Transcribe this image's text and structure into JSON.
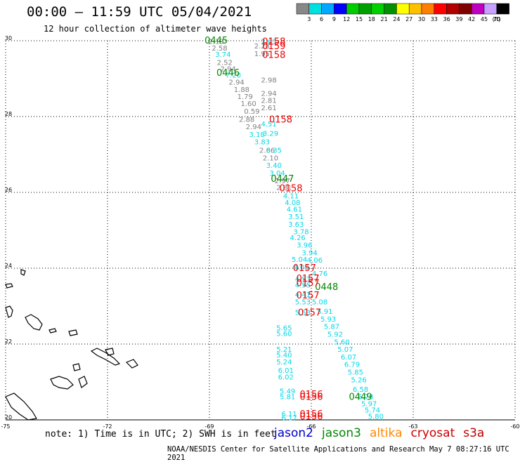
{
  "title": "00:00 – 11:59 UTC 05/04/2021",
  "subtitle": "12 hour collection of altimeter wave heights",
  "note": "note: 1) Time is in UTC; 2) SWH is in feet",
  "credit": "NOAA/NESDIS Center for Satellite Applications and Research    May  7 08:27:16 UTC 2021",
  "missions": [
    {
      "name": "jason2",
      "color": "#0000cc"
    },
    {
      "name": "jason3",
      "color": "#008800"
    },
    {
      "name": "altika",
      "color": "#ff8800"
    },
    {
      "name": "cryosat",
      "color": "#cc0000"
    },
    {
      "name": "s3a",
      "color": "#bb0000"
    }
  ],
  "colorbar": {
    "unit": "(ft)",
    "ticks": [
      "3",
      "6",
      "9",
      "12",
      "15",
      "18",
      "21",
      "24",
      "27",
      "30",
      "33",
      "36",
      "39",
      "42",
      "45",
      "70"
    ],
    "colors": [
      "#888888",
      "#00e0e0",
      "#00a8ff",
      "#0000ff",
      "#00cc00",
      "#00a000",
      "#00d000",
      "#009000",
      "#ffff00",
      "#ffc000",
      "#ff8000",
      "#ff0000",
      "#b00000",
      "#800000",
      "#c000c0",
      "#c8a0ff",
      "#000000"
    ]
  },
  "chart_data": {
    "type": "scatter",
    "title": "00:00 – 11:59 UTC 05/04/2021",
    "subtitle": "12 hour collection of altimeter wave heights",
    "xlabel": "",
    "ylabel": "",
    "xlim": [
      -75,
      -60
    ],
    "ylim": [
      20,
      30
    ],
    "x_ticks": [
      "-75",
      "-72",
      "-69",
      "-66",
      "-63",
      "-60"
    ],
    "y_ticks": [
      "20",
      "22",
      "24",
      "26",
      "28",
      "30"
    ],
    "grid": true,
    "series": [
      {
        "name": "SWH",
        "points": [
          {
            "lon": -68.8,
            "lat": 29.97,
            "v": "2.19",
            "c": "#808080"
          },
          {
            "lon": -68.7,
            "lat": 29.8,
            "v": "2.58",
            "c": "#808080"
          },
          {
            "lon": -68.6,
            "lat": 29.63,
            "v": "3.74",
            "c": "#00d8e8"
          },
          {
            "lon": -68.55,
            "lat": 29.42,
            "v": "2.52",
            "c": "#808080"
          },
          {
            "lon": -68.45,
            "lat": 29.25,
            "v": "2.94",
            "c": "#808080"
          },
          {
            "lon": -68.3,
            "lat": 29.08,
            "v": "7.20",
            "c": "#00d8e8"
          },
          {
            "lon": -68.2,
            "lat": 28.9,
            "v": "2.94",
            "c": "#808080"
          },
          {
            "lon": -68.05,
            "lat": 28.7,
            "v": "1.88",
            "c": "#808080"
          },
          {
            "lon": -67.95,
            "lat": 28.52,
            "v": "1.79",
            "c": "#808080"
          },
          {
            "lon": -67.85,
            "lat": 28.33,
            "v": "1.60",
            "c": "#808080"
          },
          {
            "lon": -67.75,
            "lat": 28.13,
            "v": "0.59",
            "c": "#808080"
          },
          {
            "lon": -67.9,
            "lat": 27.92,
            "v": "2.88",
            "c": "#808080"
          },
          {
            "lon": -67.7,
            "lat": 27.72,
            "v": "2.94",
            "c": "#808080"
          },
          {
            "lon": -67.6,
            "lat": 27.52,
            "v": "3.18",
            "c": "#00d8e8"
          },
          {
            "lon": -67.45,
            "lat": 27.32,
            "v": "3.83",
            "c": "#00d8e8"
          },
          {
            "lon": -67.3,
            "lat": 27.1,
            "v": "2.66",
            "c": "#808080"
          },
          {
            "lon": -67.2,
            "lat": 26.9,
            "v": "2.10",
            "c": "#808080"
          },
          {
            "lon": -67.1,
            "lat": 26.7,
            "v": "3.40",
            "c": "#00d8e8"
          },
          {
            "lon": -67.0,
            "lat": 26.5,
            "v": "3.04",
            "c": "#00d8e8"
          },
          {
            "lon": -66.85,
            "lat": 26.3,
            "v": "2.97",
            "c": "#808080"
          },
          {
            "lon": -66.8,
            "lat": 26.12,
            "v": "2.81",
            "c": "#808080"
          },
          {
            "lon": -67.25,
            "lat": 29.97,
            "v": "2.63",
            "c": "#00d8e8"
          },
          {
            "lon": -67.45,
            "lat": 29.85,
            "v": "2.28",
            "c": "#808080"
          },
          {
            "lon": -67.45,
            "lat": 29.65,
            "v": "1.95",
            "c": "#808080"
          },
          {
            "lon": -67.25,
            "lat": 28.95,
            "v": "2.98",
            "c": "#808080"
          },
          {
            "lon": -67.25,
            "lat": 28.6,
            "v": "2.94",
            "c": "#808080"
          },
          {
            "lon": -67.25,
            "lat": 28.42,
            "v": "2.81",
            "c": "#808080"
          },
          {
            "lon": -67.25,
            "lat": 28.22,
            "v": "2.61",
            "c": "#808080"
          },
          {
            "lon": -67.25,
            "lat": 27.8,
            "v": "4.51",
            "c": "#00d8e8"
          },
          {
            "lon": -67.2,
            "lat": 27.55,
            "v": "3.29",
            "c": "#00d8e8"
          },
          {
            "lon": -67.1,
            "lat": 27.1,
            "v": "3.35",
            "c": "#00d8e8"
          },
          {
            "lon": -66.6,
            "lat": 25.9,
            "v": "4.11",
            "c": "#00d8e8"
          },
          {
            "lon": -66.55,
            "lat": 25.72,
            "v": "4.08",
            "c": "#00d8e8"
          },
          {
            "lon": -66.5,
            "lat": 25.55,
            "v": "4.61",
            "c": "#00d8e8"
          },
          {
            "lon": -66.45,
            "lat": 25.35,
            "v": "3.51",
            "c": "#00d8e8"
          },
          {
            "lon": -66.45,
            "lat": 25.15,
            "v": "3.63",
            "c": "#00d8e8"
          },
          {
            "lon": -66.3,
            "lat": 24.95,
            "v": "3.78",
            "c": "#00d8e8"
          },
          {
            "lon": -66.4,
            "lat": 24.8,
            "v": "4.26",
            "c": "#00d8e8"
          },
          {
            "lon": -66.2,
            "lat": 24.6,
            "v": "3.96",
            "c": "#00d8e8"
          },
          {
            "lon": -66.05,
            "lat": 24.4,
            "v": "3.94",
            "c": "#00d8e8"
          },
          {
            "lon": -65.9,
            "lat": 24.2,
            "v": "4.06",
            "c": "#00d8e8"
          },
          {
            "lon": -66.35,
            "lat": 24.22,
            "v": "5.04",
            "c": "#00d8e8"
          },
          {
            "lon": -66.3,
            "lat": 24.02,
            "v": "4.08",
            "c": "#00d8e8"
          },
          {
            "lon": -65.75,
            "lat": 23.85,
            "v": "4.76",
            "c": "#00d8e8"
          },
          {
            "lon": -66.25,
            "lat": 23.7,
            "v": "4.53",
            "c": "#00d8e8"
          },
          {
            "lon": -66.25,
            "lat": 23.55,
            "v": "4.55",
            "c": "#00d8e8"
          },
          {
            "lon": -66.25,
            "lat": 23.3,
            "v": "4.41",
            "c": "#00d8e8"
          },
          {
            "lon": -66.25,
            "lat": 23.1,
            "v": "5.53",
            "c": "#00d8e8"
          },
          {
            "lon": -66.25,
            "lat": 22.82,
            "v": "5.53",
            "c": "#00d8e8"
          },
          {
            "lon": -65.75,
            "lat": 23.1,
            "v": "5.08",
            "c": "#00d8e8"
          },
          {
            "lon": -65.6,
            "lat": 22.85,
            "v": "5.91",
            "c": "#00d8e8"
          },
          {
            "lon": -65.5,
            "lat": 22.65,
            "v": "5.93",
            "c": "#00d8e8"
          },
          {
            "lon": -65.4,
            "lat": 22.45,
            "v": "5.87",
            "c": "#00d8e8"
          },
          {
            "lon": -65.3,
            "lat": 22.25,
            "v": "5.92",
            "c": "#00d8e8"
          },
          {
            "lon": -65.1,
            "lat": 22.05,
            "v": "5.60",
            "c": "#00d8e8"
          },
          {
            "lon": -65.0,
            "lat": 21.85,
            "v": "5.07",
            "c": "#00d8e8"
          },
          {
            "lon": -64.9,
            "lat": 21.65,
            "v": "6.07",
            "c": "#00d8e8"
          },
          {
            "lon": -64.8,
            "lat": 21.45,
            "v": "6.79",
            "c": "#00d8e8"
          },
          {
            "lon": -64.7,
            "lat": 21.25,
            "v": "5.85",
            "c": "#00d8e8"
          },
          {
            "lon": -64.6,
            "lat": 21.05,
            "v": "5.26",
            "c": "#00d8e8"
          },
          {
            "lon": -64.55,
            "lat": 20.8,
            "v": "6.58",
            "c": "#00d8e8"
          },
          {
            "lon": -64.4,
            "lat": 20.6,
            "v": "5.78",
            "c": "#00d8e8"
          },
          {
            "lon": -64.3,
            "lat": 20.42,
            "v": "5.97",
            "c": "#00d8e8"
          },
          {
            "lon": -64.2,
            "lat": 20.25,
            "v": "5.74",
            "c": "#00d8e8"
          },
          {
            "lon": -64.1,
            "lat": 20.08,
            "v": "5.80",
            "c": "#00d8e8"
          },
          {
            "lon": -66.8,
            "lat": 22.42,
            "v": "5.65",
            "c": "#00d8e8"
          },
          {
            "lon": -66.8,
            "lat": 22.27,
            "v": "5.60",
            "c": "#00d8e8"
          },
          {
            "lon": -66.8,
            "lat": 21.85,
            "v": "5.21",
            "c": "#00d8e8"
          },
          {
            "lon": -66.8,
            "lat": 21.7,
            "v": "5.40",
            "c": "#00d8e8"
          },
          {
            "lon": -66.8,
            "lat": 21.52,
            "v": "5.24",
            "c": "#00d8e8"
          },
          {
            "lon": -66.75,
            "lat": 21.3,
            "v": "6.01",
            "c": "#00d8e8"
          },
          {
            "lon": -66.75,
            "lat": 21.12,
            "v": "6.02",
            "c": "#00d8e8"
          },
          {
            "lon": -66.7,
            "lat": 20.75,
            "v": "5.49",
            "c": "#00d8e8"
          },
          {
            "lon": -66.7,
            "lat": 20.6,
            "v": "5.81",
            "c": "#00d8e8"
          },
          {
            "lon": -66.65,
            "lat": 20.15,
            "v": "6.11",
            "c": "#00d8e8"
          },
          {
            "lon": -66.65,
            "lat": 20.05,
            "v": "6.17",
            "c": "#00d8e8"
          }
        ]
      },
      {
        "name": "pass times",
        "points": [
          {
            "lon": -68.8,
            "lat": 30.0,
            "v": "0445",
            "c": "#008800"
          },
          {
            "lon": -68.45,
            "lat": 29.15,
            "v": "0446",
            "c": "#008800"
          },
          {
            "lon": -66.85,
            "lat": 26.35,
            "v": "0447",
            "c": "#008800"
          },
          {
            "lon": -65.55,
            "lat": 23.5,
            "v": "0448",
            "c": "#008800"
          },
          {
            "lon": -64.55,
            "lat": 20.6,
            "v": "0449",
            "c": "#008800"
          },
          {
            "lon": -67.1,
            "lat": 29.97,
            "v": "0158",
            "c": "#ee0000"
          },
          {
            "lon": -67.1,
            "lat": 29.85,
            "v": "0159",
            "c": "#ee0000"
          },
          {
            "lon": -67.1,
            "lat": 29.62,
            "v": "0158",
            "c": "#ee0000"
          },
          {
            "lon": -66.9,
            "lat": 27.92,
            "v": "0158",
            "c": "#ee0000"
          },
          {
            "lon": -66.6,
            "lat": 26.1,
            "v": "0158",
            "c": "#ee0000"
          },
          {
            "lon": -66.2,
            "lat": 24.0,
            "v": "0157",
            "c": "#ee0000"
          },
          {
            "lon": -66.1,
            "lat": 23.72,
            "v": "0157",
            "c": "#ee0000"
          },
          {
            "lon": -66.1,
            "lat": 23.6,
            "v": "0157",
            "c": "#ee0000"
          },
          {
            "lon": -66.1,
            "lat": 23.28,
            "v": "0157",
            "c": "#ee0000"
          },
          {
            "lon": -66.05,
            "lat": 22.82,
            "v": "0157",
            "c": "#ee0000"
          },
          {
            "lon": -66.0,
            "lat": 20.67,
            "v": "0156",
            "c": "#ee0000"
          },
          {
            "lon": -66.0,
            "lat": 20.6,
            "v": "0156",
            "c": "#ee0000"
          },
          {
            "lon": -66.0,
            "lat": 20.15,
            "v": "0156",
            "c": "#ee0000"
          },
          {
            "lon": -66.0,
            "lat": 20.08,
            "v": "0156",
            "c": "#ee0000"
          }
        ]
      }
    ]
  }
}
